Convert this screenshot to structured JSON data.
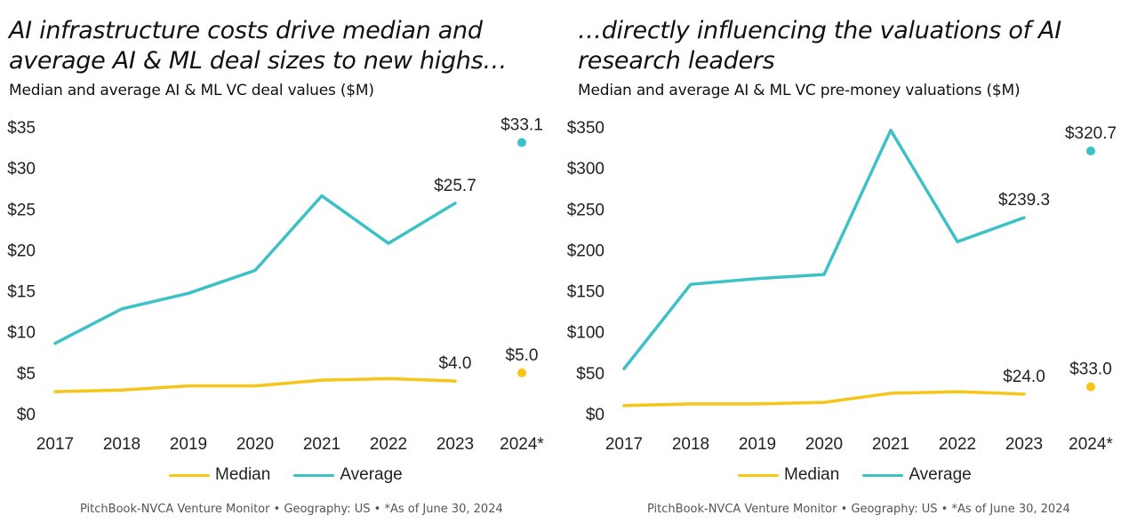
{
  "colors": {
    "median": "#f5c518",
    "average": "#3cc2c6"
  },
  "charts": [
    {
      "title": "AI infrastructure costs drive median and average AI & ML deal sizes to new highs…",
      "subtitle": "Median and average AI & ML VC deal values ($M)",
      "legend": {
        "median": "Median",
        "average": "Average"
      },
      "source": "PitchBook-NVCA Venture Monitor  •  Geography: US  •  *As of June 30, 2024"
    },
    {
      "title": "…directly influencing the valuations of AI research leaders",
      "subtitle": "Median and average AI & ML VC pre-money valuations ($M)",
      "legend": {
        "median": "Median",
        "average": "Average"
      },
      "source": "PitchBook-NVCA Venture Monitor  •  Geography: US  •  *As of June 30, 2024"
    }
  ],
  "chart_data": [
    {
      "type": "line",
      "title": "AI infrastructure costs drive median and average AI & ML deal sizes to new highs…",
      "subtitle": "Median and average AI & ML VC deal values ($M)",
      "categories": [
        "2017",
        "2018",
        "2019",
        "2020",
        "2021",
        "2022",
        "2023",
        "2024*"
      ],
      "yticks": [
        "$0",
        "$5",
        "$10",
        "$15",
        "$20",
        "$25",
        "$30",
        "$35"
      ],
      "ylim": [
        0,
        35
      ],
      "grid": false,
      "legend_position": "bottom",
      "series": [
        {
          "name": "Median",
          "values": [
            2.7,
            2.9,
            3.4,
            3.4,
            4.1,
            4.3,
            4.0,
            5.0
          ],
          "labels": {
            "6": "$4.0",
            "7": "$5.0"
          }
        },
        {
          "name": "Average",
          "values": [
            8.6,
            12.8,
            14.7,
            17.5,
            26.6,
            20.8,
            25.7,
            33.1
          ],
          "labels": {
            "6": "$25.7",
            "7": "$33.1"
          }
        }
      ]
    },
    {
      "type": "line",
      "title": "…directly influencing the valuations of AI research leaders",
      "subtitle": "Median and average AI & ML VC pre-money valuations ($M)",
      "categories": [
        "2017",
        "2018",
        "2019",
        "2020",
        "2021",
        "2022",
        "2023",
        "2024*"
      ],
      "yticks": [
        "$0",
        "$50",
        "$100",
        "$150",
        "$200",
        "$250",
        "$300",
        "$350"
      ],
      "ylim": [
        0,
        350
      ],
      "grid": false,
      "legend_position": "bottom",
      "series": [
        {
          "name": "Median",
          "values": [
            10,
            12,
            12,
            14,
            25,
            27,
            24.0,
            33.0
          ],
          "labels": {
            "6": "$24.0",
            "7": "$33.0"
          }
        },
        {
          "name": "Average",
          "values": [
            55,
            158,
            165,
            170,
            346,
            210,
            239.3,
            320.7
          ],
          "labels": {
            "6": "$239.3",
            "7": "$320.7"
          }
        }
      ]
    }
  ]
}
